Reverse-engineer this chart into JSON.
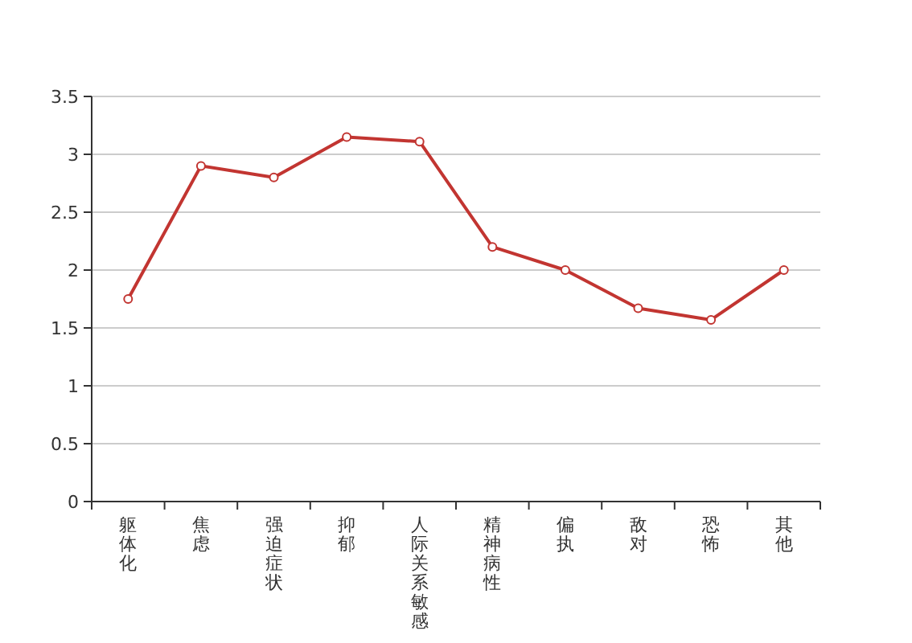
{
  "chart_data": {
    "type": "line",
    "categories": [
      "躯体化",
      "焦虑",
      "强迫症状",
      "抑郁",
      "人际关系敏感",
      "精神病性",
      "偏执",
      "敌对",
      "恐怖",
      "其他"
    ],
    "series": [
      {
        "color": "#c23531",
        "values": [
          1.75,
          2.9,
          2.8,
          3.15,
          3.11,
          2.2,
          2.0,
          1.67,
          1.57,
          2.0
        ]
      }
    ],
    "ylim": [
      0,
      3.5
    ],
    "yticks": [
      0,
      0.5,
      1,
      1.5,
      2,
      2.5,
      3,
      3.5
    ],
    "grid": "y",
    "marker": "circle",
    "line_style": "solid"
  }
}
